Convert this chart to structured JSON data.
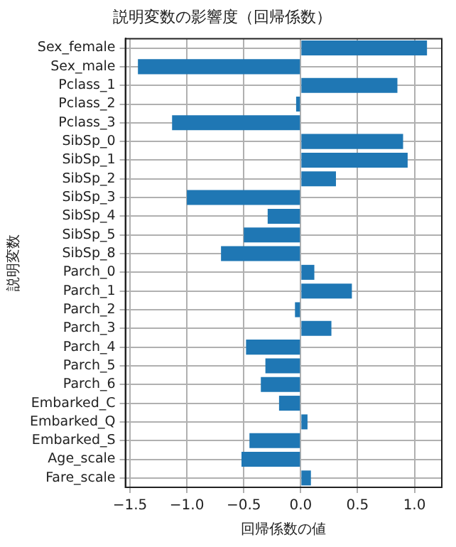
{
  "chart_data": {
    "type": "bar",
    "orientation": "horizontal",
    "title": "説明変数の影響度（回帰係数）",
    "xlabel": "回帰係数の値",
    "ylabel": "説明変数",
    "categories": [
      "Sex_female",
      "Sex_male",
      "Pclass_1",
      "Pclass_2",
      "Pclass_3",
      "SibSp_0",
      "SibSp_1",
      "SibSp_2",
      "SibSp_3",
      "SibSp_4",
      "SibSp_5",
      "SibSp_8",
      "Parch_0",
      "Parch_1",
      "Parch_2",
      "Parch_3",
      "Parch_4",
      "Parch_5",
      "Parch_6",
      "Embarked_C",
      "Embarked_Q",
      "Embarked_S",
      "Age_scale",
      "Fare_scale"
    ],
    "values": [
      1.11,
      -1.43,
      0.85,
      -0.04,
      -1.13,
      0.9,
      0.94,
      0.31,
      -1.0,
      -0.29,
      -0.5,
      -0.7,
      0.12,
      0.45,
      -0.05,
      0.27,
      -0.48,
      -0.31,
      -0.35,
      -0.19,
      0.06,
      -0.45,
      -0.52,
      0.09
    ],
    "color": "#1f77b4",
    "xlim": [
      -1.54,
      1.24
    ],
    "xticks": [
      {
        "value": -1.5,
        "label": "−1.5"
      },
      {
        "value": -1.0,
        "label": "−1.0"
      },
      {
        "value": -0.5,
        "label": "−0.5"
      },
      {
        "value": 0,
        "label": "0.0"
      },
      {
        "value": 0.5,
        "label": "0.5"
      },
      {
        "value": 1.0,
        "label": "1.0"
      }
    ],
    "grid": true
  }
}
